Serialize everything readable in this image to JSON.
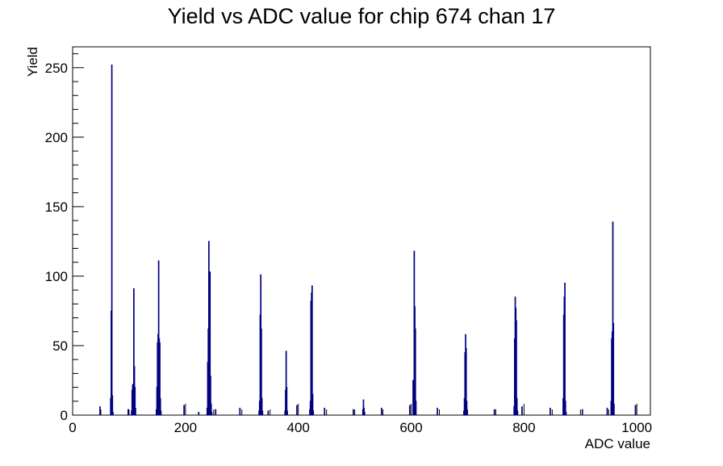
{
  "chart_data": {
    "type": "histogram",
    "title": "Yield vs ADC value for chip 674 chan 17",
    "xlabel": "ADC value",
    "ylabel": "Yield",
    "xlim": [
      0,
      1024
    ],
    "ylim": [
      0,
      265
    ],
    "x_ticks": [
      0,
      200,
      400,
      600,
      800,
      1000
    ],
    "y_ticks": [
      0,
      50,
      100,
      150,
      200,
      250
    ],
    "bin_width": 1,
    "grid": false,
    "legend": "none",
    "line_color": "#000080",
    "bins": [
      {
        "x": 67,
        "y": 12
      },
      {
        "x": 68,
        "y": 75
      },
      {
        "x": 69,
        "y": 252
      },
      {
        "x": 70,
        "y": 14
      },
      {
        "x": 71,
        "y": 2
      },
      {
        "x": 104,
        "y": 3
      },
      {
        "x": 105,
        "y": 18
      },
      {
        "x": 106,
        "y": 22
      },
      {
        "x": 107,
        "y": 22
      },
      {
        "x": 108,
        "y": 91
      },
      {
        "x": 109,
        "y": 35
      },
      {
        "x": 110,
        "y": 20
      },
      {
        "x": 111,
        "y": 5
      },
      {
        "x": 148,
        "y": 4
      },
      {
        "x": 149,
        "y": 20
      },
      {
        "x": 150,
        "y": 52
      },
      {
        "x": 151,
        "y": 58
      },
      {
        "x": 152,
        "y": 111
      },
      {
        "x": 153,
        "y": 55
      },
      {
        "x": 154,
        "y": 52
      },
      {
        "x": 155,
        "y": 12
      },
      {
        "x": 156,
        "y": 3
      },
      {
        "x": 238,
        "y": 5
      },
      {
        "x": 239,
        "y": 38
      },
      {
        "x": 240,
        "y": 62
      },
      {
        "x": 241,
        "y": 125
      },
      {
        "x": 242,
        "y": 65
      },
      {
        "x": 243,
        "y": 103
      },
      {
        "x": 244,
        "y": 28
      },
      {
        "x": 245,
        "y": 8
      },
      {
        "x": 246,
        "y": 2
      },
      {
        "x": 330,
        "y": 3
      },
      {
        "x": 331,
        "y": 10
      },
      {
        "x": 332,
        "y": 72
      },
      {
        "x": 333,
        "y": 101
      },
      {
        "x": 334,
        "y": 62
      },
      {
        "x": 335,
        "y": 12
      },
      {
        "x": 336,
        "y": 3
      },
      {
        "x": 376,
        "y": 3
      },
      {
        "x": 377,
        "y": 18
      },
      {
        "x": 378,
        "y": 46
      },
      {
        "x": 379,
        "y": 20
      },
      {
        "x": 380,
        "y": 3
      },
      {
        "x": 420,
        "y": 4
      },
      {
        "x": 421,
        "y": 10
      },
      {
        "x": 422,
        "y": 82
      },
      {
        "x": 423,
        "y": 88
      },
      {
        "x": 424,
        "y": 93
      },
      {
        "x": 425,
        "y": 15
      },
      {
        "x": 426,
        "y": 3
      },
      {
        "x": 514,
        "y": 4
      },
      {
        "x": 515,
        "y": 11
      },
      {
        "x": 516,
        "y": 5
      },
      {
        "x": 517,
        "y": 2
      },
      {
        "x": 603,
        "y": 25
      },
      {
        "x": 604,
        "y": 12
      },
      {
        "x": 605,
        "y": 118
      },
      {
        "x": 606,
        "y": 78
      },
      {
        "x": 607,
        "y": 62
      },
      {
        "x": 608,
        "y": 10
      },
      {
        "x": 693,
        "y": 3
      },
      {
        "x": 694,
        "y": 12
      },
      {
        "x": 695,
        "y": 45
      },
      {
        "x": 696,
        "y": 58
      },
      {
        "x": 697,
        "y": 48
      },
      {
        "x": 698,
        "y": 10
      },
      {
        "x": 782,
        "y": 6
      },
      {
        "x": 783,
        "y": 55
      },
      {
        "x": 784,
        "y": 85
      },
      {
        "x": 785,
        "y": 77
      },
      {
        "x": 786,
        "y": 68
      },
      {
        "x": 787,
        "y": 12
      },
      {
        "x": 788,
        "y": 3
      },
      {
        "x": 869,
        "y": 12
      },
      {
        "x": 870,
        "y": 72
      },
      {
        "x": 871,
        "y": 85
      },
      {
        "x": 872,
        "y": 95
      },
      {
        "x": 873,
        "y": 10
      },
      {
        "x": 874,
        "y": 2
      },
      {
        "x": 954,
        "y": 10
      },
      {
        "x": 955,
        "y": 55
      },
      {
        "x": 956,
        "y": 60
      },
      {
        "x": 957,
        "y": 139
      },
      {
        "x": 958,
        "y": 66
      },
      {
        "x": 959,
        "y": 8
      }
    ],
    "scatter_bins": [
      {
        "x": 48,
        "y": 6
      },
      {
        "x": 98,
        "y": 4
      },
      {
        "x": 197,
        "y": 7
      },
      {
        "x": 223,
        "y": 2
      },
      {
        "x": 253,
        "y": 4
      },
      {
        "x": 296,
        "y": 5
      },
      {
        "x": 346,
        "y": 3
      },
      {
        "x": 397,
        "y": 7
      },
      {
        "x": 446,
        "y": 5
      },
      {
        "x": 497,
        "y": 4
      },
      {
        "x": 547,
        "y": 5
      },
      {
        "x": 597,
        "y": 7
      },
      {
        "x": 646,
        "y": 5
      },
      {
        "x": 747,
        "y": 4
      },
      {
        "x": 796,
        "y": 6
      },
      {
        "x": 846,
        "y": 5
      },
      {
        "x": 903,
        "y": 4
      },
      {
        "x": 947,
        "y": 5
      },
      {
        "x": 997,
        "y": 7
      }
    ]
  }
}
